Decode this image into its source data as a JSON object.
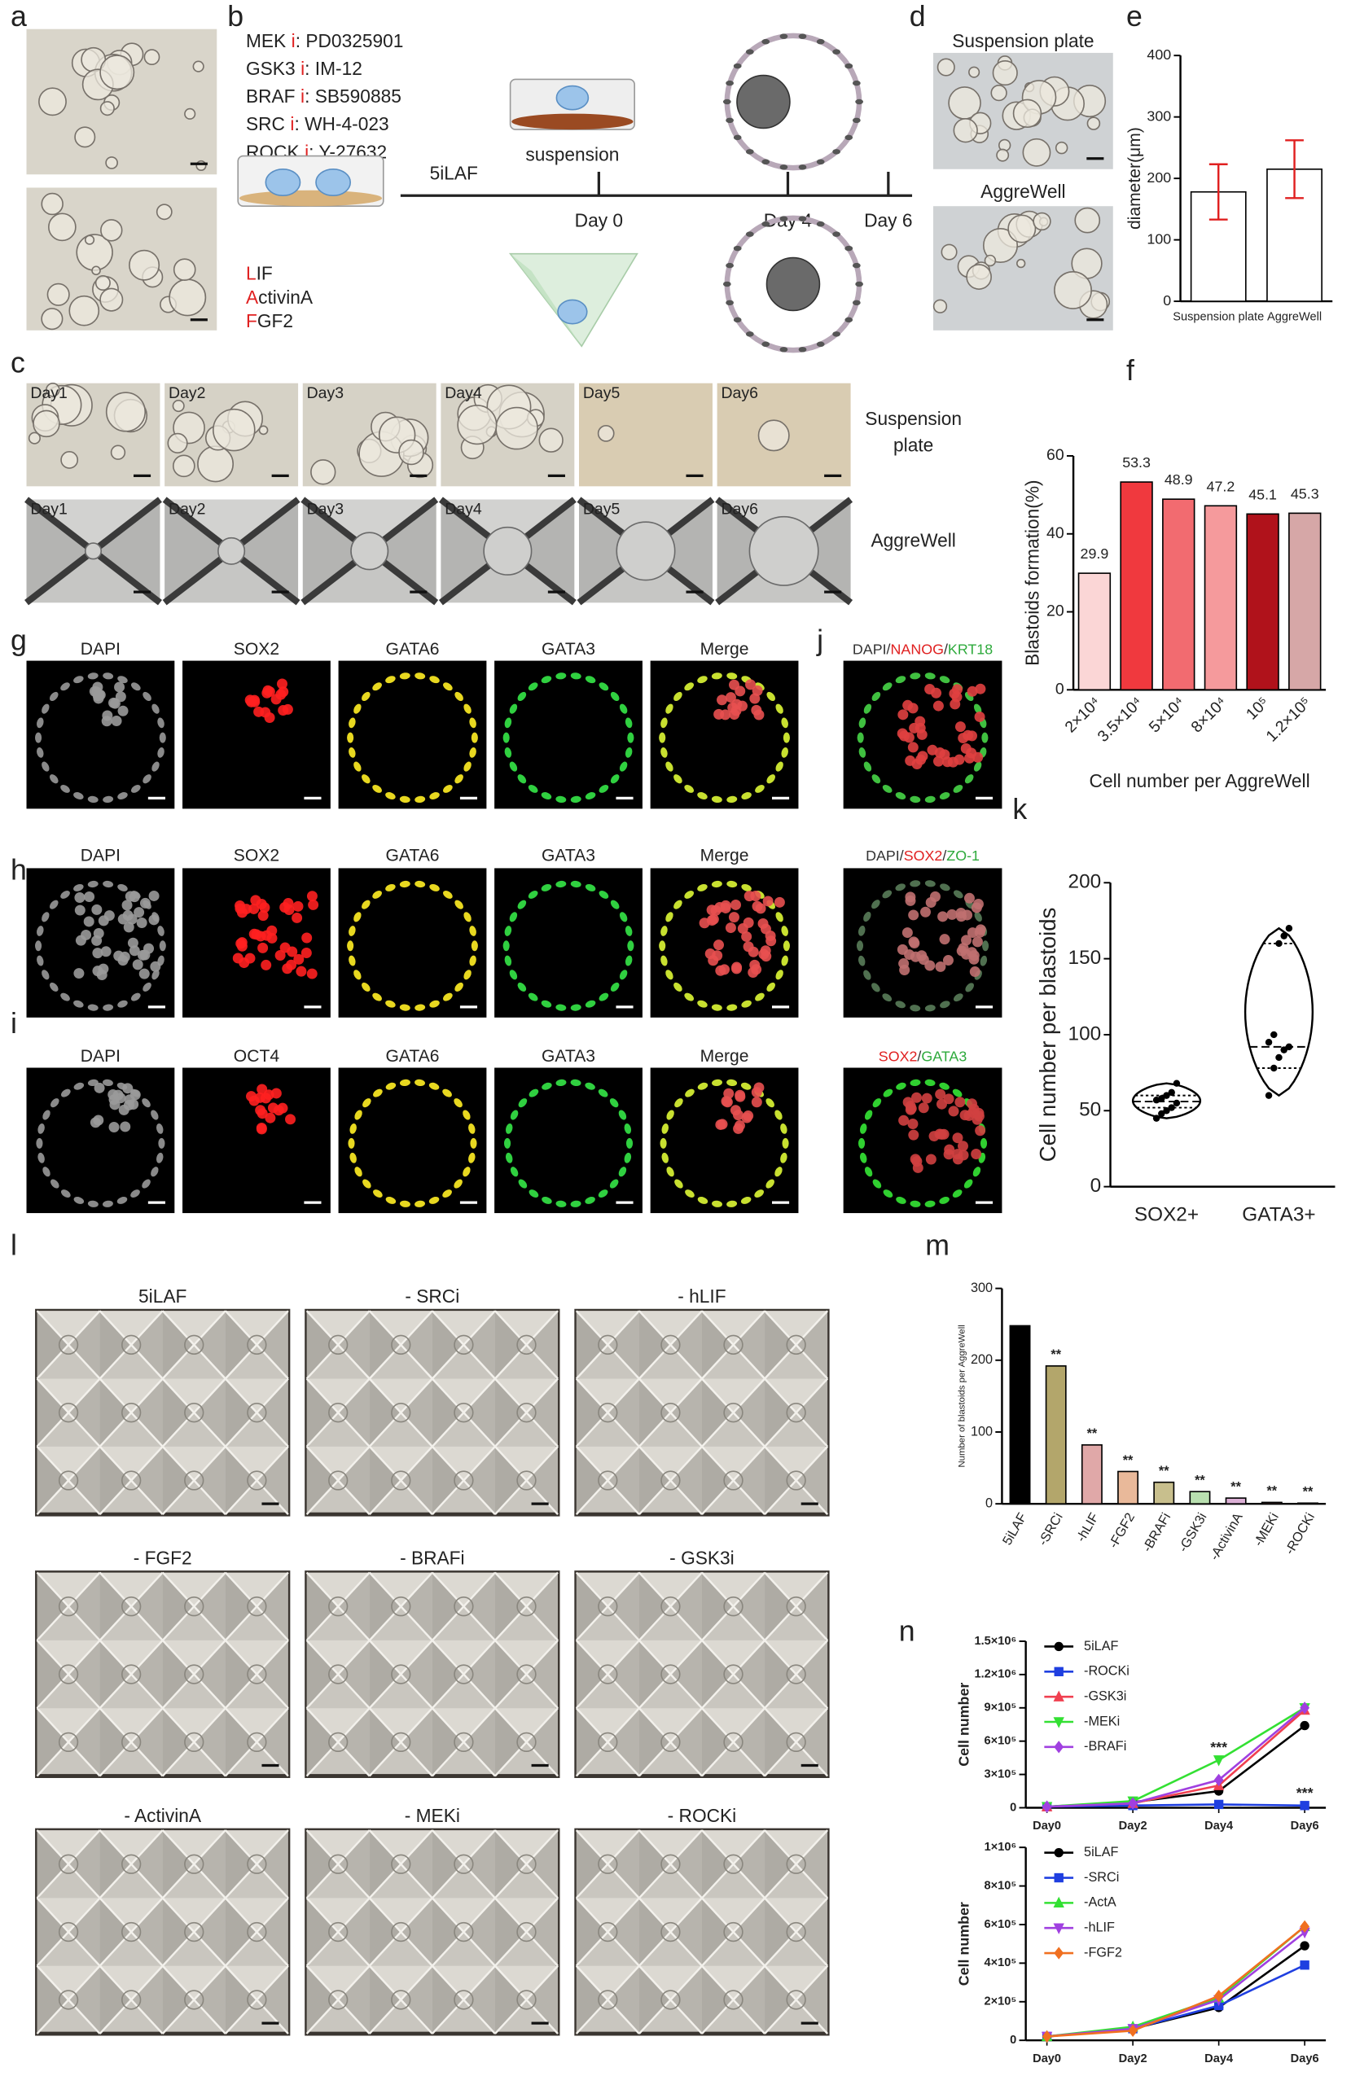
{
  "panel_letters": [
    "a",
    "b",
    "c",
    "d",
    "e",
    "f",
    "g",
    "h",
    "i",
    "j",
    "k",
    "l",
    "m",
    "n"
  ],
  "b": {
    "inhibitors": [
      {
        "target": "MEK",
        "mark": "i",
        "drug": ": PD0325901"
      },
      {
        "target": "GSK3",
        "mark": "i",
        "drug": ": IM-12"
      },
      {
        "target": "BRAF",
        "mark": "i",
        "drug": ": SB590885"
      },
      {
        "target": "SRC",
        "mark": "i",
        "drug": ": WH-4-023"
      },
      {
        "target": "ROCK",
        "mark": "i",
        "drug": ": Y-27632"
      }
    ],
    "timeline": "5iLAF",
    "suspension": "suspension",
    "days": [
      "Day 0",
      "Day 4",
      "Day 6"
    ],
    "factors": [
      {
        "initial": "L",
        "rest": "IF"
      },
      {
        "initial": "A",
        "rest": "ctivinA"
      },
      {
        "initial": "F",
        "rest": "GF2"
      }
    ]
  },
  "c": {
    "days": [
      "Day1",
      "Day2",
      "Day3",
      "Day4",
      "Day5",
      "Day6"
    ],
    "rows": [
      [
        "Suspension",
        "plate"
      ],
      [
        "AggreWell"
      ]
    ]
  },
  "d": {
    "labels": [
      "Suspension plate",
      "AggreWell"
    ]
  },
  "ghi": {
    "rows": [
      [
        {
          "text": "DAPI",
          "color": "#8a8a8a"
        },
        {
          "text": "SOX2",
          "color": "#e02020"
        },
        {
          "text": "GATA6",
          "color": "#e6d21e"
        },
        {
          "text": "GATA3",
          "color": "#2eaa3c"
        },
        {
          "text": "Merge",
          "color": "#222222"
        }
      ],
      [
        {
          "text": "DAPI",
          "color": "#8a8a8a"
        },
        {
          "text": "SOX2",
          "color": "#e02020"
        },
        {
          "text": "GATA6",
          "color": "#e6d21e"
        },
        {
          "text": "GATA3",
          "color": "#2eaa3c"
        },
        {
          "text": "Merge",
          "color": "#222222"
        }
      ],
      [
        {
          "text": "DAPI",
          "color": "#8a8a8a"
        },
        {
          "text": "OCT4",
          "color": "#e02020"
        },
        {
          "text": "GATA6",
          "color": "#e6d21e"
        },
        {
          "text": "GATA3",
          "color": "#2eaa3c"
        },
        {
          "text": "Merge",
          "color": "#222222"
        }
      ]
    ]
  },
  "jk": {
    "labels": [
      [
        {
          "text": "DAPI",
          "color": "#333333"
        },
        {
          "text": "/",
          "color": "#333333"
        },
        {
          "text": "NANOG",
          "color": "#e02020"
        },
        {
          "text": "/",
          "color": "#333333"
        },
        {
          "text": "KRT18",
          "color": "#2eaa3c"
        }
      ],
      [
        {
          "text": "DAPI",
          "color": "#333333"
        },
        {
          "text": "/",
          "color": "#333333"
        },
        {
          "text": "SOX2",
          "color": "#e02020"
        },
        {
          "text": "/",
          "color": "#333333"
        },
        {
          "text": "ZO-1",
          "color": "#2eaa3c"
        }
      ],
      [
        {
          "text": "SOX2",
          "color": "#e02020"
        },
        {
          "text": "/",
          "color": "#333333"
        },
        {
          "text": "GATA3",
          "color": "#2eaa3c"
        }
      ]
    ]
  },
  "l": {
    "titles": [
      "5iLAF",
      "- SRCi",
      "- hLIF",
      "- FGF2",
      "- BRAFi",
      "- GSK3i",
      "- ActivinA",
      "- MEKi",
      "- ROCKi"
    ]
  },
  "chart_data": [
    {
      "type": "bar",
      "ylabel": "diameter(μm)",
      "categories": [
        "Suspension plate",
        "AggreWell"
      ],
      "values": [
        178,
        215
      ],
      "errors": [
        45,
        47
      ],
      "colors": [
        "#ffffff",
        "#ffffff"
      ],
      "error_color": "#e02020",
      "ylim": [
        0,
        400
      ],
      "yticks": [
        0,
        100,
        200,
        300,
        400
      ]
    },
    {
      "type": "bar",
      "ylabel": "Blastoids formation(%)",
      "xlabel": "Cell number per AggreWell",
      "categories": [
        "2×10⁴",
        "3.5×10⁴",
        "5×10⁴",
        "8×10⁴",
        "10⁵",
        "1.2×10⁵"
      ],
      "values": [
        29.9,
        53.3,
        48.9,
        47.2,
        45.1,
        45.3
      ],
      "show_values": true,
      "colors": [
        "#fbd6d6",
        "#f0393e",
        "#f26b70",
        "#f59a9c",
        "#b0121b",
        "#d6a7a7"
      ],
      "ylim": [
        0,
        60
      ],
      "yticks": [
        0,
        20,
        40,
        60
      ]
    },
    {
      "type": "violin",
      "ylabel": "Cell number per blastoids",
      "categories": [
        "SOX2+",
        "GATA3+"
      ],
      "groups": [
        {
          "min": 45,
          "q1": 52,
          "median": 56,
          "q3": 60,
          "max": 68,
          "points": [
            45,
            48,
            50,
            52,
            55,
            57,
            58,
            60,
            62,
            68
          ]
        },
        {
          "min": 60,
          "q1": 78,
          "median": 92,
          "q3": 160,
          "max": 170,
          "points": [
            60,
            78,
            85,
            90,
            92,
            95,
            100,
            160,
            165,
            170
          ]
        }
      ],
      "ylim": [
        0,
        200
      ],
      "yticks": [
        0,
        50,
        100,
        150,
        200
      ]
    },
    {
      "type": "bar",
      "ylabel": "Number of blastoids per AggreWell",
      "categories": [
        "5iLAF",
        "-SRCi",
        "-hLIF",
        "-FGF2",
        "-BRAFi",
        "-GSK3i",
        "-ActivinA",
        "-MEKi",
        "-ROCKi"
      ],
      "values": [
        248,
        192,
        82,
        45,
        30,
        17,
        8,
        2,
        1
      ],
      "annotations": [
        null,
        "**",
        "**",
        "**",
        "**",
        "**",
        "**",
        "**",
        "**"
      ],
      "colors": [
        "#000000",
        "#b3a66b",
        "#e0a8a8",
        "#e9b99a",
        "#c8bf8d",
        "#b9e0b0",
        "#dcb0d6",
        "#f0a0a0",
        "#f0b0b0"
      ],
      "ylim": [
        0,
        300
      ],
      "yticks": [
        0,
        100,
        200,
        300
      ]
    },
    {
      "type": "line",
      "ylabel": "Cell number",
      "categories": [
        "Day0",
        "Day2",
        "Day4",
        "Day6"
      ],
      "series": [
        {
          "name": "5iLAF",
          "color": "#000000",
          "marker": "circle",
          "values": [
            10000,
            50000,
            150000,
            740000
          ]
        },
        {
          "name": "-ROCKi",
          "color": "#1f3fe0",
          "marker": "square",
          "values": [
            10000,
            20000,
            30000,
            20000
          ]
        },
        {
          "name": "-GSK3i",
          "color": "#f04050",
          "marker": "triangle",
          "values": [
            10000,
            40000,
            200000,
            880000
          ]
        },
        {
          "name": "-MEKi",
          "color": "#33e033",
          "marker": "triangle-down",
          "values": [
            10000,
            60000,
            430000,
            900000
          ]
        },
        {
          "name": "-BRAFi",
          "color": "#a040e0",
          "marker": "diamond",
          "values": [
            10000,
            40000,
            250000,
            900000
          ]
        }
      ],
      "annotations": [
        {
          "text": "***",
          "series": "-MEKi",
          "x": "Day4"
        },
        {
          "text": "***",
          "series": "-ROCKi",
          "x": "Day6"
        }
      ],
      "ylim": [
        0,
        1500000
      ],
      "yticks": [
        0,
        {
          "value": 300000,
          "label": "3×10⁵"
        },
        {
          "value": 600000,
          "label": "6×10⁵"
        },
        {
          "value": 900000,
          "label": "9×10⁵"
        },
        {
          "value": 1200000,
          "label": "1.2×10⁶"
        },
        {
          "value": 1500000,
          "label": "1.5×10⁶"
        }
      ]
    },
    {
      "type": "line",
      "ylabel": "Cell number",
      "categories": [
        "Day0",
        "Day2",
        "Day4",
        "Day6"
      ],
      "series": [
        {
          "name": "5iLAF",
          "color": "#000000",
          "marker": "circle",
          "values": [
            20000,
            60000,
            170000,
            490000
          ]
        },
        {
          "name": "-SRCi",
          "color": "#1f3fe0",
          "marker": "square",
          "values": [
            20000,
            60000,
            180000,
            390000
          ]
        },
        {
          "name": "-ActA",
          "color": "#33e033",
          "marker": "triangle",
          "values": [
            20000,
            70000,
            220000,
            590000
          ]
        },
        {
          "name": "-hLIF",
          "color": "#a040e0",
          "marker": "triangle-down",
          "values": [
            20000,
            60000,
            210000,
            560000
          ]
        },
        {
          "name": "-FGF2",
          "color": "#f07020",
          "marker": "diamond",
          "values": [
            20000,
            50000,
            230000,
            590000
          ]
        }
      ],
      "ylim": [
        0,
        1000000
      ],
      "yticks": [
        0,
        {
          "value": 200000,
          "label": "2×10⁵"
        },
        {
          "value": 400000,
          "label": "4×10⁵"
        },
        {
          "value": 600000,
          "label": "6×10⁵"
        },
        {
          "value": 800000,
          "label": "8×10⁵"
        },
        {
          "value": 1000000,
          "label": "1×10⁶"
        }
      ]
    }
  ]
}
